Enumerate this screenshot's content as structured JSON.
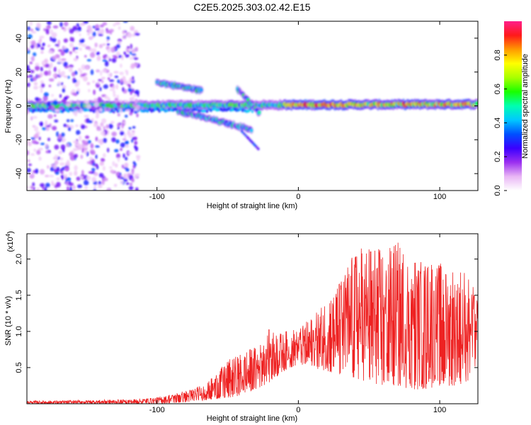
{
  "title": "C2E5.2025.303.02.42.E15",
  "chart_data": [
    {
      "type": "heatmap",
      "xlabel": "Height of straight line (km)",
      "ylabel": "Frequency (Hz)",
      "xlim": [
        -192,
        127
      ],
      "ylim": [
        -50,
        50
      ],
      "xticks": [
        -100,
        0,
        100
      ],
      "yticks": [
        -40,
        -20,
        0,
        20,
        40
      ],
      "xtick_labels": [
        "-100",
        "0",
        "100"
      ],
      "ytick_labels": [
        "-40",
        "-20",
        "0",
        "20",
        "40"
      ],
      "colorbar": {
        "label": "Normalized spectral amplitude",
        "range": [
          0,
          1
        ],
        "ticks": [
          0.0,
          0.2,
          0.4,
          0.6,
          0.8
        ],
        "tick_labels": [
          "0.0",
          "0.2",
          "0.4",
          "0.6",
          "0.8"
        ],
        "colors": [
          "#ffffff",
          "#e9b6f5",
          "#9b2ff0",
          "#3a00ff",
          "#0050ff",
          "#00c8ff",
          "#00ffb0",
          "#19ff00",
          "#a8ff00",
          "#ffff00",
          "#ff9a00",
          "#ff1a1a",
          "#ff1f8a"
        ]
      },
      "features": [
        {
          "name": "main-band",
          "x_range": [
            -192,
            127
          ],
          "freq_start": 0,
          "freq_end": 1,
          "peak_amplitude": 0.95
        },
        {
          "name": "upper-branch",
          "x_range": [
            -100,
            -68
          ],
          "freq_start": 14,
          "freq_end": 9,
          "peak_amplitude": 0.6
        },
        {
          "name": "lower-branch",
          "x_range": [
            -85,
            -33
          ],
          "freq_start": -3,
          "freq_end": -14,
          "peak_amplitude": 0.55
        },
        {
          "name": "crossing-branch",
          "x_range": [
            -43,
            -27
          ],
          "freq_start": 10,
          "freq_end": -5,
          "peak_amplitude": 0.55
        },
        {
          "name": "broadband-noise",
          "x_range": [
            -192,
            -113
          ],
          "freq_range": [
            -50,
            50
          ],
          "peak_amplitude": 0.3
        }
      ]
    },
    {
      "type": "line",
      "xlabel": "Height of straight line (km)",
      "ylabel": "SNR (10 * v/v)",
      "y_multiplier": "(x10",
      "y_multiplier_exp": "4",
      "y_multiplier_close": ")",
      "xlim": [
        -192,
        127
      ],
      "ylim": [
        0,
        2.35
      ],
      "xticks": [
        -100,
        0,
        100
      ],
      "yticks": [
        0.5,
        1.0,
        1.5,
        2.0
      ],
      "xtick_labels": [
        "-100",
        "0",
        "100"
      ],
      "ytick_labels": [
        "0.5",
        "1.0",
        "1.5",
        "2.0"
      ],
      "color": "#ee2222",
      "envelope": {
        "x": [
          -192,
          -150,
          -120,
          -100,
          -80,
          -65,
          -50,
          -40,
          -30,
          -20,
          -10,
          0,
          10,
          20,
          30,
          40,
          50,
          60,
          70,
          80,
          90,
          100,
          110,
          120,
          127
        ],
        "low": [
          0.0,
          0.0,
          0.0,
          0.0,
          0.02,
          0.05,
          0.08,
          0.12,
          0.2,
          0.3,
          0.45,
          0.55,
          0.5,
          0.45,
          0.4,
          0.35,
          0.3,
          0.25,
          0.25,
          0.2,
          0.2,
          0.25,
          0.25,
          0.3,
          0.6
        ],
        "high": [
          0.04,
          0.05,
          0.06,
          0.09,
          0.18,
          0.28,
          0.6,
          0.7,
          0.8,
          1.05,
          1.0,
          1.05,
          1.2,
          1.45,
          1.75,
          2.15,
          2.2,
          2.15,
          2.25,
          2.0,
          2.1,
          1.95,
          1.9,
          1.85,
          1.45
        ]
      }
    }
  ]
}
